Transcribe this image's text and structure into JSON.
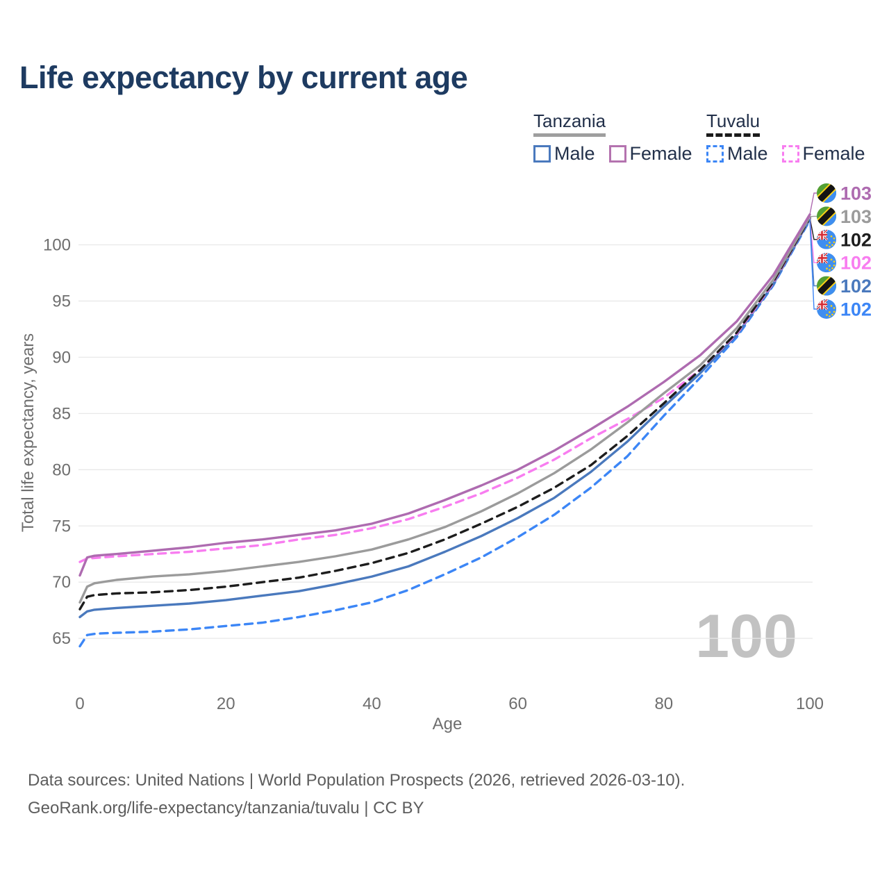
{
  "title": "Life expectancy by current age",
  "legend": {
    "groups": [
      {
        "name": "Tanzania",
        "underline_style": "solid",
        "underline_color": "#9e9e9e",
        "items": [
          {
            "label": "Male",
            "color": "#4a79bd",
            "border_style": "solid"
          },
          {
            "label": "Female",
            "color": "#b473af",
            "border_style": "solid"
          }
        ]
      },
      {
        "name": "Tuvalu",
        "underline_style": "dashed",
        "underline_color": "#1b1b1b",
        "items": [
          {
            "label": "Male",
            "color": "#3c86f6",
            "border_style": "dashed"
          },
          {
            "label": "Female",
            "color": "#f87df0",
            "border_style": "dashed"
          }
        ]
      }
    ]
  },
  "footer": {
    "line1": "Data sources: United Nations | World Population Prospects (2026, retrieved 2026-03-10).",
    "line2": "GeoRank.org/life-expectancy/tanzania/tuvalu | CC BY"
  },
  "chart_data": {
    "type": "line",
    "title": "Life expectancy by current age",
    "xlabel": "Age",
    "ylabel": "Total life expectancy, years",
    "watermark": "100",
    "x_ticks": [
      0,
      20,
      40,
      60,
      80,
      100
    ],
    "y_ticks": [
      65,
      70,
      75,
      80,
      85,
      90,
      95,
      100
    ],
    "xlim": [
      0,
      100
    ],
    "ylim": [
      63.5,
      103.5
    ],
    "grid": "horizontal",
    "ages": [
      0,
      1,
      2,
      3,
      5,
      10,
      15,
      20,
      25,
      30,
      35,
      40,
      45,
      50,
      55,
      60,
      65,
      70,
      75,
      80,
      85,
      90,
      95,
      100
    ],
    "series": [
      {
        "id": "tanzania-female",
        "name": "Tanzania Female",
        "flag": "tanzania",
        "color": "#ae6bb0",
        "dashed": false,
        "end_label": "103",
        "values": [
          70.6,
          72.2,
          72.35,
          72.4,
          72.5,
          72.8,
          73.1,
          73.5,
          73.8,
          74.2,
          74.6,
          75.2,
          76.1,
          77.3,
          78.6,
          80.0,
          81.7,
          83.6,
          85.6,
          87.8,
          90.2,
          93.2,
          97.3,
          102.7
        ]
      },
      {
        "id": "tanzania-both",
        "name": "Tanzania Both sexes",
        "flag": "tanzania",
        "color": "#9b9b9b",
        "dashed": false,
        "end_label": "103",
        "values": [
          68.2,
          69.6,
          69.9,
          70.0,
          70.2,
          70.5,
          70.7,
          71.0,
          71.4,
          71.8,
          72.3,
          72.9,
          73.8,
          74.9,
          76.3,
          77.9,
          79.7,
          81.8,
          84.2,
          86.8,
          89.3,
          92.6,
          96.9,
          102.5
        ]
      },
      {
        "id": "tuvalu-both",
        "name": "Tuvalu Both sexes",
        "flag": "tuvalu",
        "color": "#1d1d1d",
        "dashed": true,
        "end_label": "102",
        "values": [
          67.6,
          68.7,
          68.85,
          68.9,
          69.0,
          69.1,
          69.3,
          69.6,
          70.0,
          70.4,
          71.0,
          71.7,
          72.6,
          73.8,
          75.2,
          76.7,
          78.4,
          80.4,
          83.0,
          85.9,
          88.9,
          92.2,
          96.7,
          102.4
        ]
      },
      {
        "id": "tuvalu-female",
        "name": "Tuvalu Female",
        "flag": "tuvalu",
        "color": "#f87df0",
        "dashed": true,
        "end_label": "102",
        "values": [
          71.8,
          72.1,
          72.15,
          72.2,
          72.3,
          72.5,
          72.7,
          73.0,
          73.3,
          73.8,
          74.2,
          74.8,
          75.6,
          76.7,
          77.9,
          79.3,
          80.9,
          82.8,
          84.5,
          86.4,
          88.9,
          92.1,
          96.6,
          102.4
        ]
      },
      {
        "id": "tanzania-male",
        "name": "Tanzania Male",
        "flag": "tanzania",
        "color": "#4a79bd",
        "dashed": false,
        "end_label": "102",
        "values": [
          66.9,
          67.4,
          67.55,
          67.6,
          67.7,
          67.9,
          68.1,
          68.4,
          68.8,
          69.2,
          69.8,
          70.5,
          71.4,
          72.7,
          74.1,
          75.7,
          77.5,
          79.8,
          82.5,
          85.6,
          88.6,
          92.0,
          96.5,
          102.3
        ]
      },
      {
        "id": "tuvalu-male",
        "name": "Tuvalu Male",
        "flag": "tuvalu",
        "color": "#3c86f6",
        "dashed": true,
        "end_label": "102",
        "values": [
          64.3,
          65.3,
          65.4,
          65.45,
          65.5,
          65.6,
          65.8,
          66.1,
          66.4,
          66.9,
          67.5,
          68.2,
          69.3,
          70.7,
          72.2,
          74.0,
          76.0,
          78.4,
          81.2,
          84.8,
          88.2,
          91.8,
          96.4,
          102.2
        ]
      }
    ]
  }
}
